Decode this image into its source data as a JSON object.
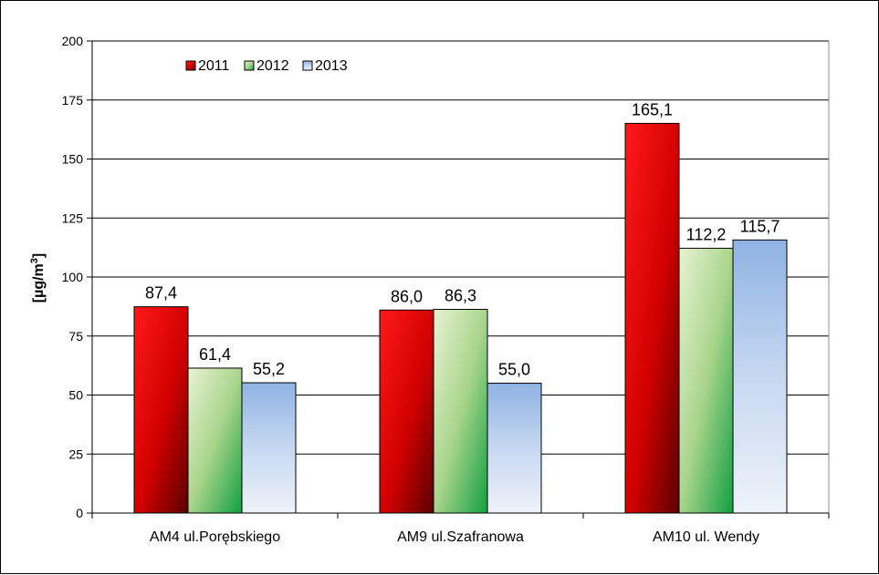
{
  "chart_data": {
    "type": "bar",
    "categories": [
      "AM4 ul.Porębskiego",
      "AM9  ul.Szafranowa",
      "AM10 ul. Wendy"
    ],
    "series": [
      {
        "name": "2011",
        "values": [
          87.4,
          86.0,
          165.1
        ],
        "labels": [
          "87,4",
          "86,0",
          "165,1"
        ],
        "color": "#e00000"
      },
      {
        "name": "2012",
        "values": [
          61.4,
          86.3,
          112.2
        ],
        "labels": [
          "61,4",
          "86,3",
          "112,2"
        ],
        "color": "#7fc97a"
      },
      {
        "name": "2013",
        "values": [
          55.2,
          55.0,
          115.7
        ],
        "labels": [
          "55,2",
          "55,0",
          "115,7"
        ],
        "color": "#9dbde6"
      }
    ],
    "ylabel": "[µg/m",
    "ylabel_sup": "3",
    "ylabel_end": "]",
    "ylim": [
      0,
      200
    ],
    "yticks": [
      "0",
      "25",
      "50",
      "75",
      "100",
      "125",
      "150",
      "175",
      "200"
    ],
    "grid": true,
    "legend_position": "top-left"
  }
}
